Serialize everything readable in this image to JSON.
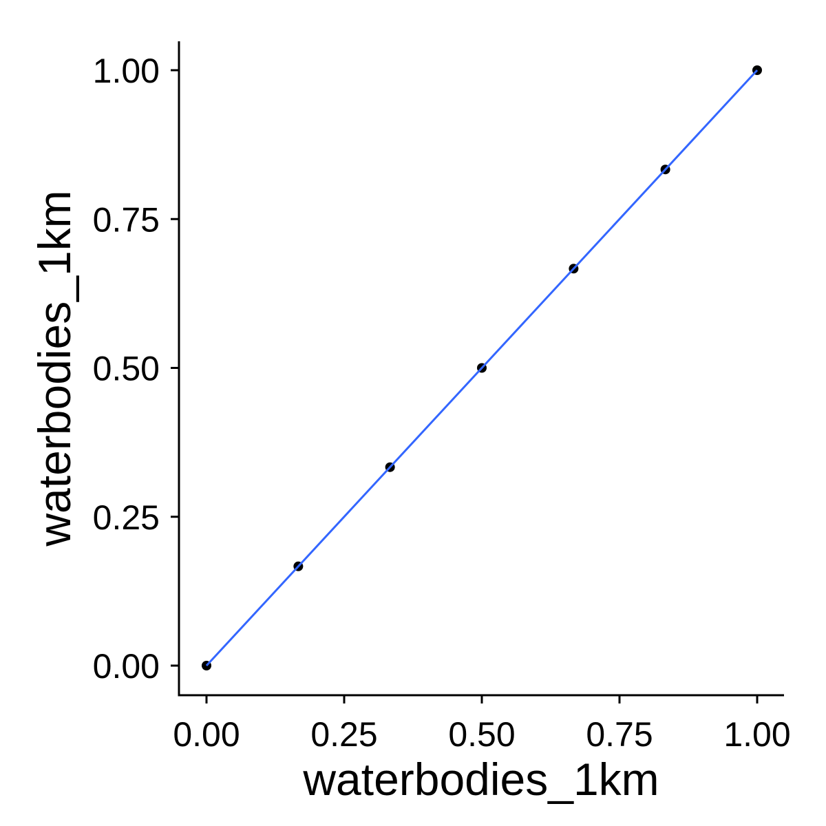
{
  "chart_data": {
    "type": "scatter",
    "title": "",
    "xlabel": "waterbodies_1km",
    "ylabel": "waterbodies_1km",
    "xlim": [
      -0.05,
      1.05
    ],
    "ylim": [
      -0.05,
      1.05
    ],
    "x_ticks": [
      "0.00",
      "0.25",
      "0.50",
      "0.75",
      "1.00"
    ],
    "y_ticks": [
      "0.00",
      "0.25",
      "0.50",
      "0.75",
      "1.00"
    ],
    "grid": false,
    "series": [
      {
        "kind": "points",
        "color": "#000000",
        "x": [
          0,
          0.1667,
          0.3333,
          0.5,
          0.6667,
          0.8333,
          1.0
        ],
        "y": [
          0,
          0.1667,
          0.3333,
          0.5,
          0.6667,
          0.8333,
          1.0
        ]
      },
      {
        "kind": "fit-line",
        "color": "#3366FF",
        "x": [
          0,
          1.0
        ],
        "y": [
          0,
          1.0
        ]
      }
    ]
  }
}
